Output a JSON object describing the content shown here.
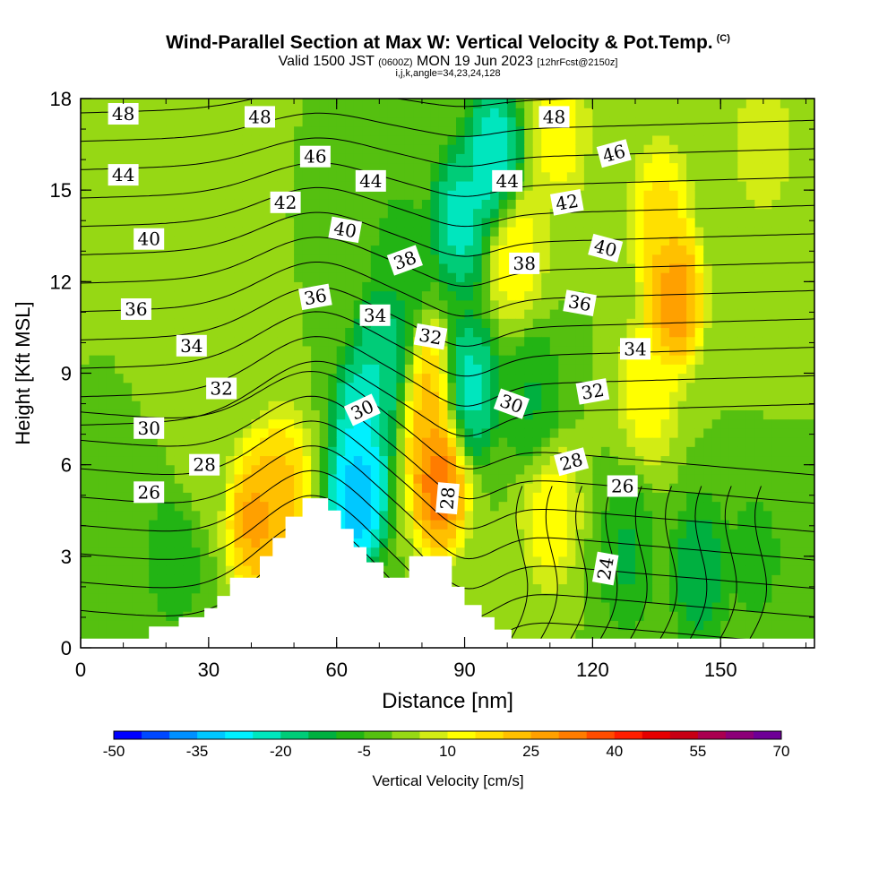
{
  "header": {
    "title": "Wind-Parallel Section at Max W: Vertical Velocity & Pot.Temp.",
    "copyright": "(C)",
    "valid_prefix": "Valid 1500 JST",
    "valid_utc": "(0600Z)",
    "valid_date": "MON 19 Jun 2023",
    "forecast": "[12hrFcst@2150z]",
    "grid_info": "i,j,k,angle=34,23,24,128"
  },
  "chart_data": {
    "type": "heatmap",
    "overlay": "contour",
    "xlabel": "Distance [nm]",
    "ylabel": "Height [Kft MSL]",
    "xlim": [
      0,
      172
    ],
    "ylim": [
      0,
      18
    ],
    "xticks": [
      0,
      30,
      60,
      90,
      120,
      150
    ],
    "yticks": [
      0,
      3,
      6,
      9,
      12,
      15,
      18
    ],
    "colorbar": {
      "label": "Vertical Velocity [cm/s]",
      "min": -50,
      "max": 70,
      "tick_labels": [
        "-50",
        "-35",
        "-20",
        "-5",
        "10",
        "25",
        "40",
        "55",
        "70"
      ],
      "colors": [
        "#0000ff",
        "#0048ff",
        "#0090ff",
        "#00c8ff",
        "#00f0ff",
        "#00e6be",
        "#00cc78",
        "#00b040",
        "#22b414",
        "#55c010",
        "#96d814",
        "#d2ec14",
        "#ffff00",
        "#ffe000",
        "#ffc000",
        "#ffa000",
        "#ff7c00",
        "#ff4c00",
        "#ff1e00",
        "#e60000",
        "#c80014",
        "#aa0050",
        "#8c0078",
        "#6e0096"
      ]
    },
    "terrain_top_kft": [
      [
        0,
        0.3
      ],
      [
        16,
        0.3
      ],
      [
        16,
        0.7
      ],
      [
        23,
        0.7
      ],
      [
        23,
        1.0
      ],
      [
        29,
        1.0
      ],
      [
        29,
        1.3
      ],
      [
        32,
        1.3
      ],
      [
        32,
        1.7
      ],
      [
        35,
        1.7
      ],
      [
        35,
        2.3
      ],
      [
        42,
        2.3
      ],
      [
        42,
        3.0
      ],
      [
        45,
        3.0
      ],
      [
        45,
        3.6
      ],
      [
        48,
        3.6
      ],
      [
        48,
        4.3
      ],
      [
        52,
        4.3
      ],
      [
        52,
        4.9
      ],
      [
        58,
        4.9
      ],
      [
        58,
        4.5
      ],
      [
        61,
        4.5
      ],
      [
        61,
        3.9
      ],
      [
        64,
        3.9
      ],
      [
        64,
        3.3
      ],
      [
        67,
        3.3
      ],
      [
        67,
        2.8
      ],
      [
        71,
        2.8
      ],
      [
        71,
        2.3
      ],
      [
        77,
        2.3
      ],
      [
        77,
        3.0
      ],
      [
        87,
        3.0
      ],
      [
        87,
        2.0
      ],
      [
        90,
        2.0
      ],
      [
        90,
        1.4
      ],
      [
        94,
        1.4
      ],
      [
        94,
        1.0
      ],
      [
        97,
        1.0
      ],
      [
        97,
        0.6
      ],
      [
        101,
        0.6
      ],
      [
        101,
        0.3
      ],
      [
        172,
        0.3
      ]
    ],
    "vertical_velocity_features": [
      {
        "x": 41,
        "y": 4.2,
        "value": 30
      },
      {
        "x": 47,
        "y": 5.2,
        "value": 25
      },
      {
        "x": 65,
        "y": 5.0,
        "value": -40
      },
      {
        "x": 66,
        "y": 7.5,
        "value": -28
      },
      {
        "x": 71,
        "y": 9.5,
        "value": -22
      },
      {
        "x": 84,
        "y": 5.5,
        "value": 38
      },
      {
        "x": 82,
        "y": 8.0,
        "value": 25
      },
      {
        "x": 91,
        "y": 8.5,
        "value": -25
      },
      {
        "x": 89,
        "y": 14.0,
        "value": -25
      },
      {
        "x": 97,
        "y": 16.0,
        "value": -28
      },
      {
        "x": 102,
        "y": 13.0,
        "value": 15
      },
      {
        "x": 106,
        "y": 8.0,
        "value": -12
      },
      {
        "x": 110,
        "y": 4.5,
        "value": 15
      },
      {
        "x": 139,
        "y": 11.5,
        "value": 33
      },
      {
        "x": 136,
        "y": 14.0,
        "value": 20
      },
      {
        "x": 133,
        "y": 8.5,
        "value": 15
      },
      {
        "x": 112,
        "y": 17.0,
        "value": 15
      },
      {
        "x": 128,
        "y": 3.0,
        "value": -12
      },
      {
        "x": 145,
        "y": 2.5,
        "value": -15
      },
      {
        "x": 158,
        "y": 3.0,
        "value": -8
      },
      {
        "x": 22,
        "y": 3.0,
        "value": -10
      },
      {
        "x": 28,
        "y": 6.0,
        "value": 3
      },
      {
        "x": 24,
        "y": 15.5,
        "value": 4
      },
      {
        "x": 75,
        "y": 12.5,
        "value": -10
      },
      {
        "x": 160,
        "y": 12.0,
        "value": 2
      },
      {
        "x": 160,
        "y": 16.5,
        "value": 10
      }
    ],
    "contour_labels": [
      {
        "text": "48",
        "x": 10,
        "y": 17.5,
        "angle": 0
      },
      {
        "text": "48",
        "x": 42,
        "y": 17.4,
        "angle": 0
      },
      {
        "text": "48",
        "x": 111,
        "y": 17.4,
        "angle": 0
      },
      {
        "text": "46",
        "x": 55,
        "y": 16.1,
        "angle": 0
      },
      {
        "text": "46",
        "x": 125,
        "y": 16.2,
        "angle": -15
      },
      {
        "text": "44",
        "x": 10,
        "y": 15.5,
        "angle": 0
      },
      {
        "text": "44",
        "x": 68,
        "y": 15.3,
        "angle": 0
      },
      {
        "text": "44",
        "x": 100,
        "y": 15.3,
        "angle": 0
      },
      {
        "text": "42",
        "x": 48,
        "y": 14.6,
        "angle": 0
      },
      {
        "text": "42",
        "x": 114,
        "y": 14.6,
        "angle": -10
      },
      {
        "text": "40",
        "x": 16,
        "y": 13.4,
        "angle": 0
      },
      {
        "text": "40",
        "x": 62,
        "y": 13.7,
        "angle": 10
      },
      {
        "text": "40",
        "x": 123,
        "y": 13.1,
        "angle": 15
      },
      {
        "text": "38",
        "x": 76,
        "y": 12.7,
        "angle": -20
      },
      {
        "text": "38",
        "x": 104,
        "y": 12.6,
        "angle": 0
      },
      {
        "text": "36",
        "x": 13,
        "y": 11.1,
        "angle": 0
      },
      {
        "text": "36",
        "x": 55,
        "y": 11.5,
        "angle": -10
      },
      {
        "text": "36",
        "x": 117,
        "y": 11.3,
        "angle": 10
      },
      {
        "text": "34",
        "x": 26,
        "y": 9.9,
        "angle": 0
      },
      {
        "text": "34",
        "x": 69,
        "y": 10.9,
        "angle": 0
      },
      {
        "text": "34",
        "x": 130,
        "y": 9.8,
        "angle": 0
      },
      {
        "text": "32",
        "x": 33,
        "y": 8.5,
        "angle": 0
      },
      {
        "text": "32",
        "x": 82,
        "y": 10.2,
        "angle": 10
      },
      {
        "text": "32",
        "x": 120,
        "y": 8.4,
        "angle": -10
      },
      {
        "text": "30",
        "x": 16,
        "y": 7.2,
        "angle": 0
      },
      {
        "text": "30",
        "x": 66,
        "y": 7.8,
        "angle": -25
      },
      {
        "text": "30",
        "x": 101,
        "y": 8.0,
        "angle": 20
      },
      {
        "text": "28",
        "x": 29,
        "y": 6.0,
        "angle": 0
      },
      {
        "text": "28",
        "x": 86,
        "y": 4.9,
        "angle": -85
      },
      {
        "text": "28",
        "x": 115,
        "y": 6.1,
        "angle": -15
      },
      {
        "text": "26",
        "x": 16,
        "y": 5.1,
        "angle": 0
      },
      {
        "text": "26",
        "x": 127,
        "y": 5.3,
        "angle": 0
      },
      {
        "text": "24",
        "x": 123,
        "y": 2.6,
        "angle": -80
      }
    ]
  }
}
